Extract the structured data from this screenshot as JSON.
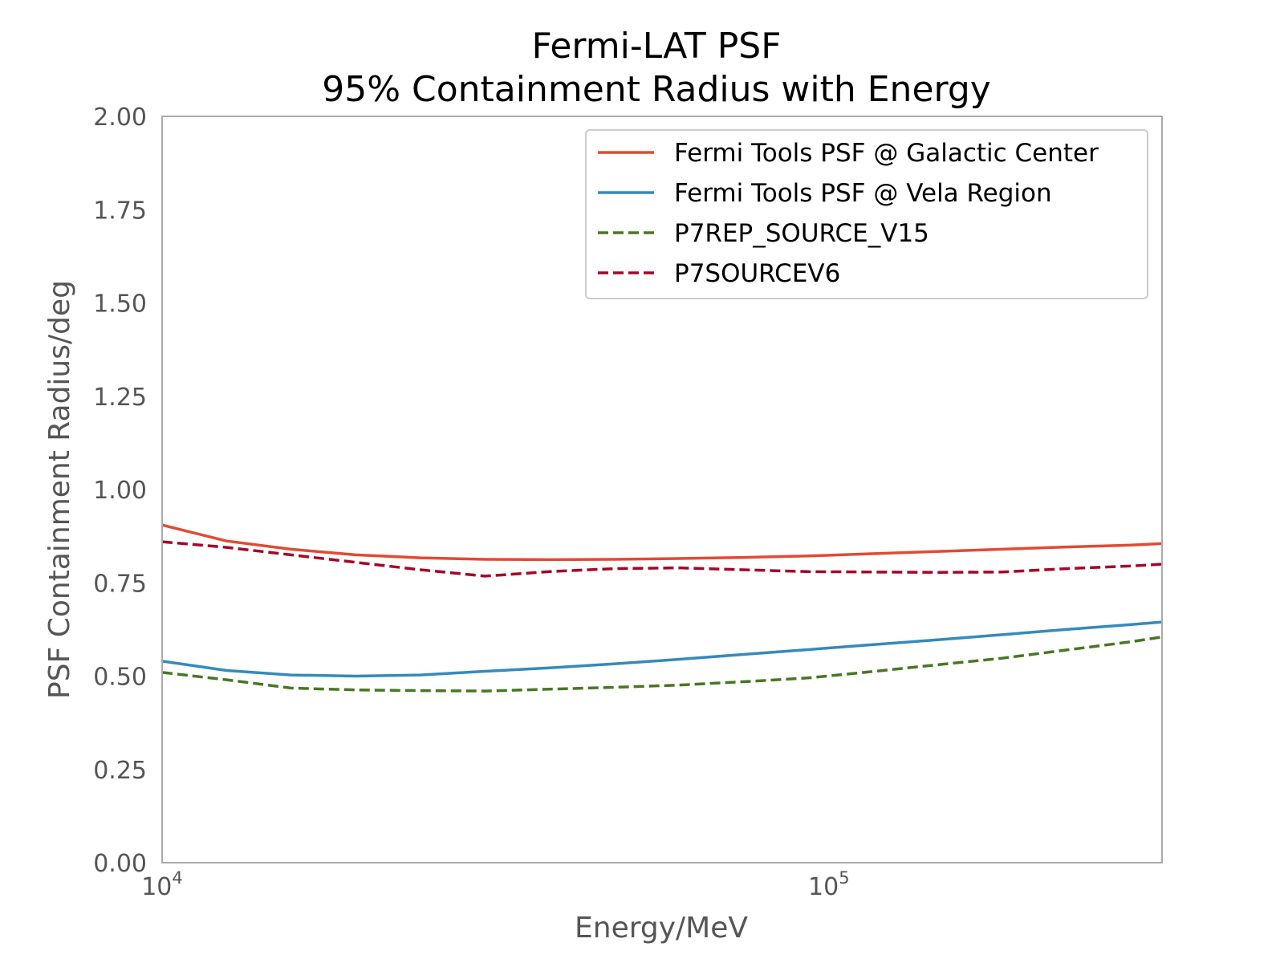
{
  "chart_data": {
    "type": "line",
    "title": [
      "Fermi-LAT PSF",
      "95% Containment Radius with Energy"
    ],
    "xlabel": "Energy/MeV",
    "ylabel": "PSF Containment Radius/deg",
    "xscale": "log",
    "xlim": [
      10000,
      316000
    ],
    "ylim": [
      0,
      2
    ],
    "yticks": [
      "0.00",
      "0.25",
      "0.50",
      "0.75",
      "1.00",
      "1.25",
      "1.50",
      "1.75",
      "2.00"
    ],
    "xticks": [
      {
        "value": 10000,
        "base": "10",
        "exp": "4"
      },
      {
        "value": 100000,
        "base": "10",
        "exp": "5"
      }
    ],
    "grid": false,
    "legend_position": "top-right",
    "series": [
      {
        "name": "Fermi Tools PSF @ Galactic Center",
        "color": "#e24a33",
        "dash": "solid",
        "x": [
          10000,
          12500,
          15600,
          19500,
          24400,
          30500,
          38100,
          47600,
          59500,
          74400,
          93000,
          116000,
          145000,
          182000,
          227000,
          284000,
          316000
        ],
        "y": [
          0.905,
          0.862,
          0.84,
          0.825,
          0.817,
          0.813,
          0.812,
          0.813,
          0.815,
          0.818,
          0.822,
          0.828,
          0.834,
          0.84,
          0.846,
          0.851,
          0.855
        ]
      },
      {
        "name": "Fermi Tools PSF @ Vela Region",
        "color": "#348abd",
        "dash": "solid",
        "x": [
          10000,
          12500,
          15600,
          19500,
          24400,
          30500,
          38100,
          47600,
          59500,
          74400,
          93000,
          116000,
          145000,
          182000,
          227000,
          284000,
          316000
        ],
        "y": [
          0.54,
          0.515,
          0.503,
          0.5,
          0.503,
          0.513,
          0.522,
          0.533,
          0.545,
          0.558,
          0.571,
          0.584,
          0.597,
          0.611,
          0.625,
          0.638,
          0.645
        ]
      },
      {
        "name": "P7REP_SOURCE_V15",
        "color": "#467821",
        "dash": "dashed",
        "x": [
          10000,
          12500,
          15600,
          19500,
          24400,
          30500,
          38100,
          47600,
          59500,
          74400,
          93000,
          116000,
          145000,
          182000,
          227000,
          284000,
          316000
        ],
        "y": [
          0.51,
          0.49,
          0.468,
          0.463,
          0.461,
          0.46,
          0.465,
          0.47,
          0.476,
          0.485,
          0.495,
          0.512,
          0.53,
          0.548,
          0.57,
          0.592,
          0.605
        ]
      },
      {
        "name": "P7SOURCEV6",
        "color": "#a60628",
        "dash": "dashed",
        "x": [
          10000,
          12500,
          15600,
          19500,
          24400,
          30500,
          38100,
          47600,
          59500,
          74400,
          93000,
          116000,
          145000,
          182000,
          227000,
          284000,
          316000
        ],
        "y": [
          0.86,
          0.845,
          0.825,
          0.805,
          0.785,
          0.768,
          0.78,
          0.788,
          0.79,
          0.785,
          0.78,
          0.779,
          0.778,
          0.779,
          0.788,
          0.795,
          0.8
        ]
      }
    ]
  }
}
